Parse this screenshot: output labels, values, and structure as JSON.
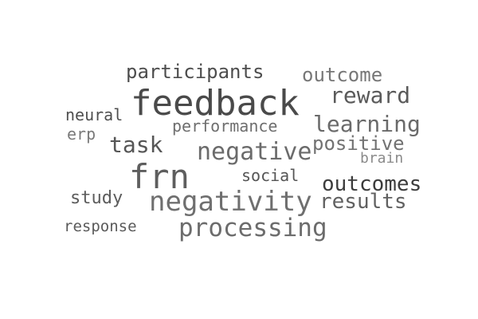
{
  "words": [
    {
      "key": "participants",
      "text": "participants",
      "color": "#4d4d4d"
    },
    {
      "key": "outcome",
      "text": "outcome",
      "color": "#777777"
    },
    {
      "key": "feedback",
      "text": "feedback",
      "color": "#4a4a4a"
    },
    {
      "key": "reward",
      "text": "reward",
      "color": "#5a5a5a"
    },
    {
      "key": "neural",
      "text": "neural",
      "color": "#4f4f4f"
    },
    {
      "key": "performance",
      "text": "performance",
      "color": "#6e6e6e"
    },
    {
      "key": "learning",
      "text": "learning",
      "color": "#6a6a6a"
    },
    {
      "key": "erp",
      "text": "erp",
      "color": "#7a7a7a"
    },
    {
      "key": "task",
      "text": "task",
      "color": "#565656"
    },
    {
      "key": "positive",
      "text": "positive",
      "color": "#727272"
    },
    {
      "key": "negative",
      "text": "negative",
      "color": "#6b6b6b"
    },
    {
      "key": "brain",
      "text": "brain",
      "color": "#8a8a8a"
    },
    {
      "key": "frn",
      "text": "frn",
      "color": "#5e5e5e"
    },
    {
      "key": "social",
      "text": "social",
      "color": "#555555"
    },
    {
      "key": "outcomes",
      "text": "outcomes",
      "color": "#3c3c3c"
    },
    {
      "key": "study",
      "text": "study",
      "color": "#5c5c5c"
    },
    {
      "key": "negativity",
      "text": "negativity",
      "color": "#6f6f6f"
    },
    {
      "key": "results",
      "text": "results",
      "color": "#616161"
    },
    {
      "key": "response",
      "text": "response",
      "color": "#5a5a5a"
    },
    {
      "key": "processing",
      "text": "processing",
      "color": "#6c6c6c"
    }
  ]
}
